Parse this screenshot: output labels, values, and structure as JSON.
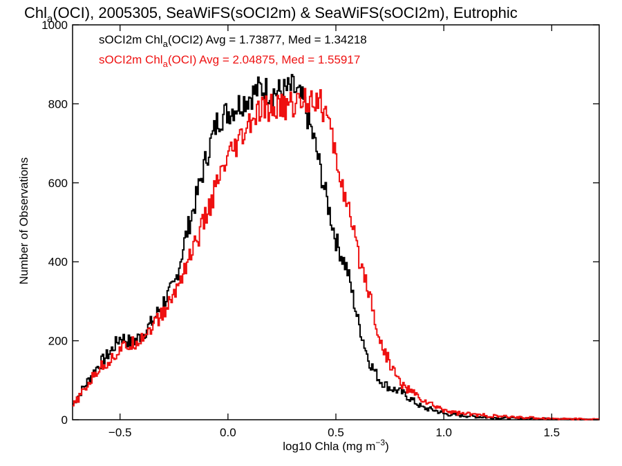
{
  "chart_data": {
    "type": "line",
    "title": {
      "pre": "Chl",
      "sub": "a",
      "post": "(OCI), 2005305, SeaWiFS(sOCI2m) & SeaWiFS(sOCI2m), Eutrophic"
    },
    "xlabel": {
      "pre": "log10 Chla (mg m",
      "sup": "−3",
      "post": ")"
    },
    "ylabel": "Number of Observations",
    "xlim": [
      -0.72,
      1.72
    ],
    "ylim": [
      0,
      1000
    ],
    "x_ticks": [
      {
        "value": -0.5,
        "label": "−0.5"
      },
      {
        "value": 0.0,
        "label": "0.0"
      },
      {
        "value": 0.5,
        "label": "0.5"
      },
      {
        "value": 1.0,
        "label": "1.0"
      },
      {
        "value": 1.5,
        "label": "1.5"
      }
    ],
    "y_ticks": [
      {
        "value": 0,
        "label": "0"
      },
      {
        "value": 200,
        "label": "200"
      },
      {
        "value": 400,
        "label": "400"
      },
      {
        "value": 600,
        "label": "600"
      },
      {
        "value": 800,
        "label": "800"
      },
      {
        "value": 1000,
        "label": "1000"
      }
    ],
    "series": [
      {
        "legend_pre": "sOCI2m Chl",
        "legend_sub": "a",
        "legend_post": "(OCI2) Avg = 1.73877, Med = 1.34218",
        "color": "#000000",
        "x": [
          -0.72,
          -0.65,
          -0.6,
          -0.55,
          -0.5,
          -0.45,
          -0.4,
          -0.35,
          -0.3,
          -0.25,
          -0.2,
          -0.15,
          -0.1,
          -0.05,
          0.0,
          0.05,
          0.1,
          0.15,
          0.2,
          0.25,
          0.3,
          0.35,
          0.4,
          0.45,
          0.5,
          0.55,
          0.6,
          0.65,
          0.7,
          0.75,
          0.8,
          0.85,
          0.9,
          0.95,
          1.0,
          1.05,
          1.1,
          1.2,
          1.3,
          1.4,
          1.5,
          1.6,
          1.72
        ],
        "y": [
          40,
          100,
          140,
          170,
          210,
          195,
          215,
          250,
          300,
          340,
          460,
          560,
          670,
          760,
          780,
          800,
          820,
          840,
          830,
          830,
          840,
          800,
          700,
          570,
          450,
          380,
          250,
          150,
          100,
          80,
          70,
          50,
          30,
          25,
          15,
          12,
          10,
          6,
          4,
          3,
          2,
          1,
          0
        ]
      },
      {
        "legend_pre": "sOCI2m Chl",
        "legend_sub": "a",
        "legend_post": "(OCI) Avg = 2.04875, Med = 1.55917",
        "color": "#ee1111",
        "x": [
          -0.72,
          -0.65,
          -0.6,
          -0.55,
          -0.5,
          -0.45,
          -0.4,
          -0.35,
          -0.3,
          -0.25,
          -0.2,
          -0.15,
          -0.1,
          -0.05,
          0.0,
          0.05,
          0.1,
          0.15,
          0.2,
          0.25,
          0.3,
          0.35,
          0.4,
          0.45,
          0.5,
          0.55,
          0.6,
          0.65,
          0.7,
          0.75,
          0.8,
          0.85,
          0.9,
          0.95,
          1.0,
          1.05,
          1.1,
          1.2,
          1.3,
          1.4,
          1.5,
          1.6,
          1.72
        ],
        "y": [
          35,
          90,
          130,
          150,
          180,
          190,
          210,
          240,
          270,
          320,
          390,
          450,
          520,
          600,
          660,
          700,
          750,
          780,
          790,
          790,
          800,
          810,
          820,
          780,
          660,
          540,
          420,
          330,
          200,
          140,
          90,
          70,
          50,
          35,
          25,
          18,
          15,
          10,
          7,
          5,
          3,
          2,
          1
        ]
      }
    ]
  }
}
